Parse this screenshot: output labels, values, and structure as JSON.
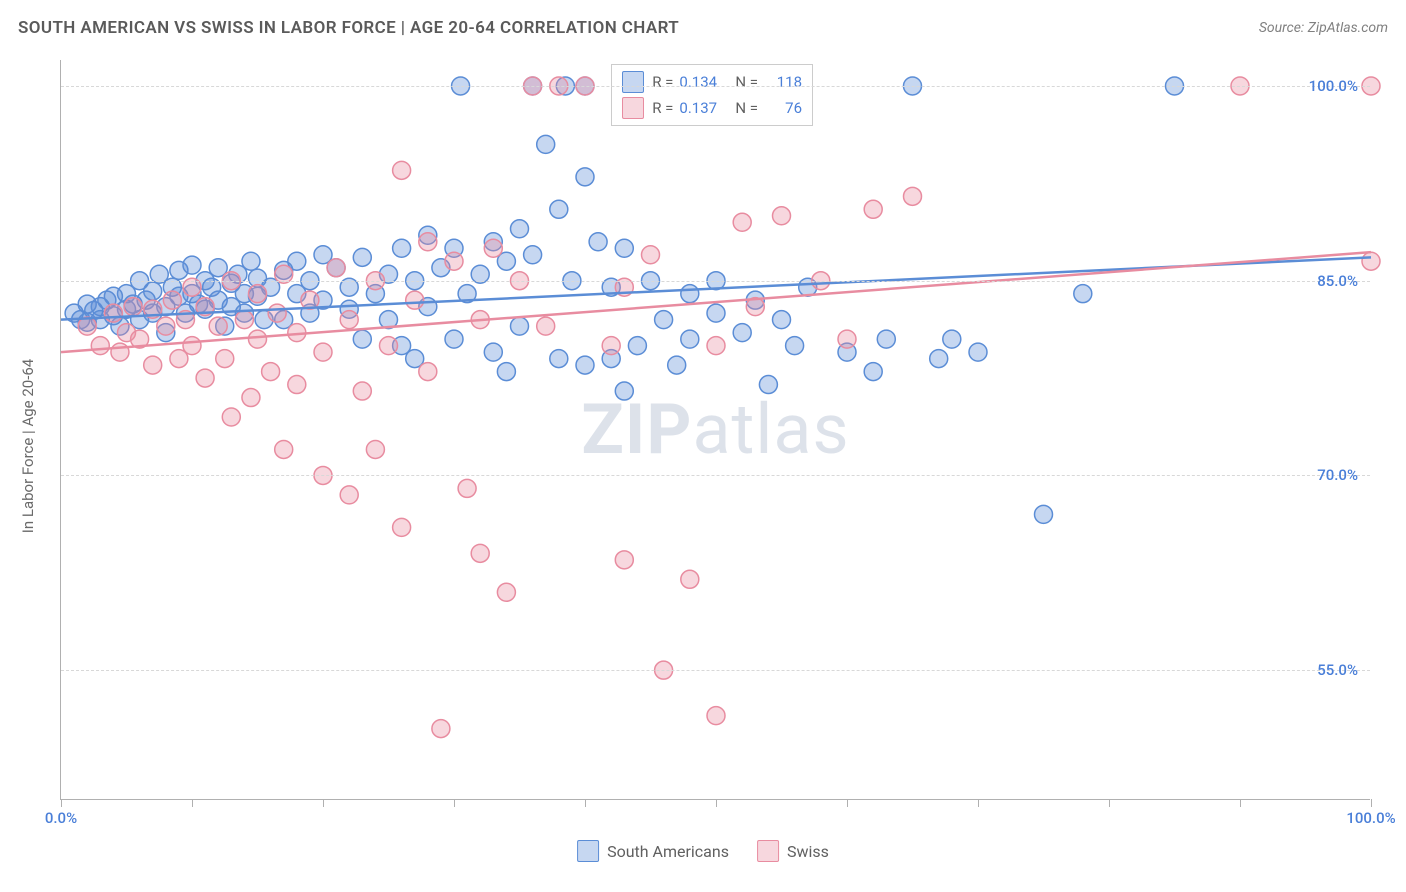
{
  "chart": {
    "type": "scatter",
    "title": "SOUTH AMERICAN VS SWISS IN LABOR FORCE | AGE 20-64 CORRELATION CHART",
    "source": "Source: ZipAtlas.com",
    "y_axis_label": "In Labor Force | Age 20-64",
    "watermark_bold": "ZIP",
    "watermark_light": "atlas",
    "background_color": "#ffffff",
    "grid_color": "#d8d8d8",
    "axis_color": "#b0b0b0",
    "value_color": "#4a7fd8",
    "label_color": "#6a6a6a",
    "xlim": [
      0,
      100
    ],
    "ylim": [
      45,
      102
    ],
    "x_ticks": [
      0,
      10,
      20,
      30,
      40,
      50,
      60,
      70,
      80,
      90,
      100
    ],
    "x_tick_labels": {
      "0": "0.0%",
      "100": "100.0%"
    },
    "y_ticks": [
      55,
      70,
      85,
      100
    ],
    "y_tick_labels": {
      "55": "55.0%",
      "70": "70.0%",
      "85": "85.0%",
      "100": "100.0%"
    },
    "marker_radius": 9,
    "marker_fill_opacity": 0.35,
    "marker_stroke_width": 1.5,
    "trend_line_width": 2.5,
    "title_fontsize": 17,
    "source_fontsize": 14,
    "axis_label_fontsize": 15,
    "tick_label_fontsize": 15,
    "series": [
      {
        "name": "South Americans",
        "color": "#5b8dd6",
        "fill": "rgba(91,141,214,0.35)",
        "R_label": "R =",
        "R": "0.134",
        "N_label": "N =",
        "N": "118",
        "trend": {
          "x1": 0,
          "y1": 82.0,
          "x2": 100,
          "y2": 86.8
        },
        "points": [
          [
            1,
            82.5
          ],
          [
            1.5,
            82.0
          ],
          [
            2,
            83.2
          ],
          [
            2,
            81.8
          ],
          [
            2.5,
            82.7
          ],
          [
            3,
            83.0
          ],
          [
            3,
            82.0
          ],
          [
            3.5,
            83.5
          ],
          [
            4,
            82.3
          ],
          [
            4,
            83.8
          ],
          [
            4.5,
            81.5
          ],
          [
            5,
            84.0
          ],
          [
            5,
            82.8
          ],
          [
            5.5,
            83.2
          ],
          [
            6,
            82.0
          ],
          [
            6,
            85.0
          ],
          [
            6.5,
            83.5
          ],
          [
            7,
            82.5
          ],
          [
            7,
            84.2
          ],
          [
            7.5,
            85.5
          ],
          [
            8,
            83.0
          ],
          [
            8,
            81.0
          ],
          [
            8.5,
            84.5
          ],
          [
            9,
            83.8
          ],
          [
            9,
            85.8
          ],
          [
            9.5,
            82.5
          ],
          [
            10,
            84.0
          ],
          [
            10,
            86.2
          ],
          [
            10.5,
            83.2
          ],
          [
            11,
            85.0
          ],
          [
            11,
            82.8
          ],
          [
            11.5,
            84.5
          ],
          [
            12,
            83.5
          ],
          [
            12,
            86.0
          ],
          [
            12.5,
            81.5
          ],
          [
            13,
            84.8
          ],
          [
            13,
            83.0
          ],
          [
            13.5,
            85.5
          ],
          [
            14,
            82.5
          ],
          [
            14,
            84.0
          ],
          [
            14.5,
            86.5
          ],
          [
            15,
            83.8
          ],
          [
            15,
            85.2
          ],
          [
            15.5,
            82.0
          ],
          [
            16,
            84.5
          ],
          [
            17,
            85.8
          ],
          [
            17,
            82.0
          ],
          [
            18,
            84.0
          ],
          [
            18,
            86.5
          ],
          [
            19,
            82.5
          ],
          [
            19,
            85.0
          ],
          [
            20,
            83.5
          ],
          [
            20,
            87.0
          ],
          [
            21,
            86.0
          ],
          [
            22,
            84.5
          ],
          [
            22,
            82.8
          ],
          [
            23,
            86.8
          ],
          [
            23,
            80.5
          ],
          [
            24,
            84.0
          ],
          [
            25,
            85.5
          ],
          [
            25,
            82.0
          ],
          [
            26,
            87.5
          ],
          [
            26,
            80.0
          ],
          [
            27,
            85.0
          ],
          [
            27,
            79.0
          ],
          [
            28,
            88.5
          ],
          [
            28,
            83.0
          ],
          [
            29,
            86.0
          ],
          [
            30,
            80.5
          ],
          [
            30,
            87.5
          ],
          [
            30.5,
            100.0
          ],
          [
            31,
            84.0
          ],
          [
            32,
            85.5
          ],
          [
            33,
            88.0
          ],
          [
            33,
            79.5
          ],
          [
            34,
            86.5
          ],
          [
            34,
            78.0
          ],
          [
            35,
            89.0
          ],
          [
            35,
            81.5
          ],
          [
            36,
            100.0
          ],
          [
            36,
            87.0
          ],
          [
            37,
            95.5
          ],
          [
            38,
            90.5
          ],
          [
            38,
            79.0
          ],
          [
            38.5,
            100.0
          ],
          [
            39,
            85.0
          ],
          [
            40,
            93.0
          ],
          [
            40,
            78.5
          ],
          [
            40,
            100.0
          ],
          [
            41,
            88.0
          ],
          [
            42,
            79.0
          ],
          [
            42,
            84.5
          ],
          [
            43,
            76.5
          ],
          [
            43,
            87.5
          ],
          [
            44,
            80.0
          ],
          [
            45,
            85.0
          ],
          [
            46,
            82.0
          ],
          [
            47,
            78.5
          ],
          [
            48,
            84.0
          ],
          [
            48,
            80.5
          ],
          [
            50,
            82.5
          ],
          [
            50,
            85.0
          ],
          [
            52,
            81.0
          ],
          [
            53,
            83.5
          ],
          [
            54,
            77.0
          ],
          [
            55,
            82.0
          ],
          [
            56,
            80.0
          ],
          [
            57,
            84.5
          ],
          [
            60,
            79.5
          ],
          [
            62,
            78.0
          ],
          [
            63,
            80.5
          ],
          [
            65,
            100.0
          ],
          [
            67,
            79.0
          ],
          [
            68,
            80.5
          ],
          [
            70,
            79.5
          ],
          [
            75,
            67.0
          ],
          [
            78,
            84.0
          ],
          [
            85,
            100.0
          ]
        ]
      },
      {
        "name": "Swiss",
        "color": "#e88ca0",
        "fill": "rgba(232,140,160,0.35)",
        "R_label": "R =",
        "R": "0.137",
        "N_label": "N =",
        "N": "76",
        "trend": {
          "x1": 0,
          "y1": 79.5,
          "x2": 100,
          "y2": 87.2
        },
        "points": [
          [
            2,
            81.5
          ],
          [
            3,
            80.0
          ],
          [
            4,
            82.5
          ],
          [
            4.5,
            79.5
          ],
          [
            5,
            81.0
          ],
          [
            5.5,
            83.0
          ],
          [
            6,
            80.5
          ],
          [
            7,
            82.8
          ],
          [
            7,
            78.5
          ],
          [
            8,
            81.5
          ],
          [
            8.5,
            83.5
          ],
          [
            9,
            79.0
          ],
          [
            9.5,
            82.0
          ],
          [
            10,
            84.5
          ],
          [
            10,
            80.0
          ],
          [
            11,
            83.0
          ],
          [
            11,
            77.5
          ],
          [
            12,
            81.5
          ],
          [
            12.5,
            79.0
          ],
          [
            13,
            85.0
          ],
          [
            13,
            74.5
          ],
          [
            14,
            82.0
          ],
          [
            14.5,
            76.0
          ],
          [
            15,
            84.0
          ],
          [
            15,
            80.5
          ],
          [
            16,
            78.0
          ],
          [
            16.5,
            82.5
          ],
          [
            17,
            85.5
          ],
          [
            17,
            72.0
          ],
          [
            18,
            81.0
          ],
          [
            18,
            77.0
          ],
          [
            19,
            83.5
          ],
          [
            20,
            79.5
          ],
          [
            20,
            70.0
          ],
          [
            21,
            86.0
          ],
          [
            22,
            68.5
          ],
          [
            22,
            82.0
          ],
          [
            23,
            76.5
          ],
          [
            24,
            72.0
          ],
          [
            24,
            85.0
          ],
          [
            25,
            80.0
          ],
          [
            26,
            93.5
          ],
          [
            26,
            66.0
          ],
          [
            27,
            83.5
          ],
          [
            28,
            78.0
          ],
          [
            28,
            88.0
          ],
          [
            29,
            50.5
          ],
          [
            30,
            86.5
          ],
          [
            31,
            69.0
          ],
          [
            32,
            82.0
          ],
          [
            32,
            64.0
          ],
          [
            33,
            87.5
          ],
          [
            34,
            61.0
          ],
          [
            35,
            85.0
          ],
          [
            36,
            100.0
          ],
          [
            37,
            81.5
          ],
          [
            38,
            100.0
          ],
          [
            40,
            100.0
          ],
          [
            42,
            80.0
          ],
          [
            43,
            84.5
          ],
          [
            43,
            63.5
          ],
          [
            45,
            87.0
          ],
          [
            46,
            55.0
          ],
          [
            48,
            62.0
          ],
          [
            50,
            51.5
          ],
          [
            50,
            80.0
          ],
          [
            52,
            89.5
          ],
          [
            53,
            83.0
          ],
          [
            55,
            90.0
          ],
          [
            58,
            85.0
          ],
          [
            60,
            80.5
          ],
          [
            62,
            90.5
          ],
          [
            65,
            91.5
          ],
          [
            90,
            100.0
          ],
          [
            100,
            100.0
          ],
          [
            100,
            86.5
          ]
        ]
      }
    ],
    "legend_bottom": [
      {
        "label": "South Americans",
        "color": "#5b8dd6",
        "fill": "rgba(91,141,214,0.35)"
      },
      {
        "label": "Swiss",
        "color": "#e88ca0",
        "fill": "rgba(232,140,160,0.35)"
      }
    ]
  }
}
